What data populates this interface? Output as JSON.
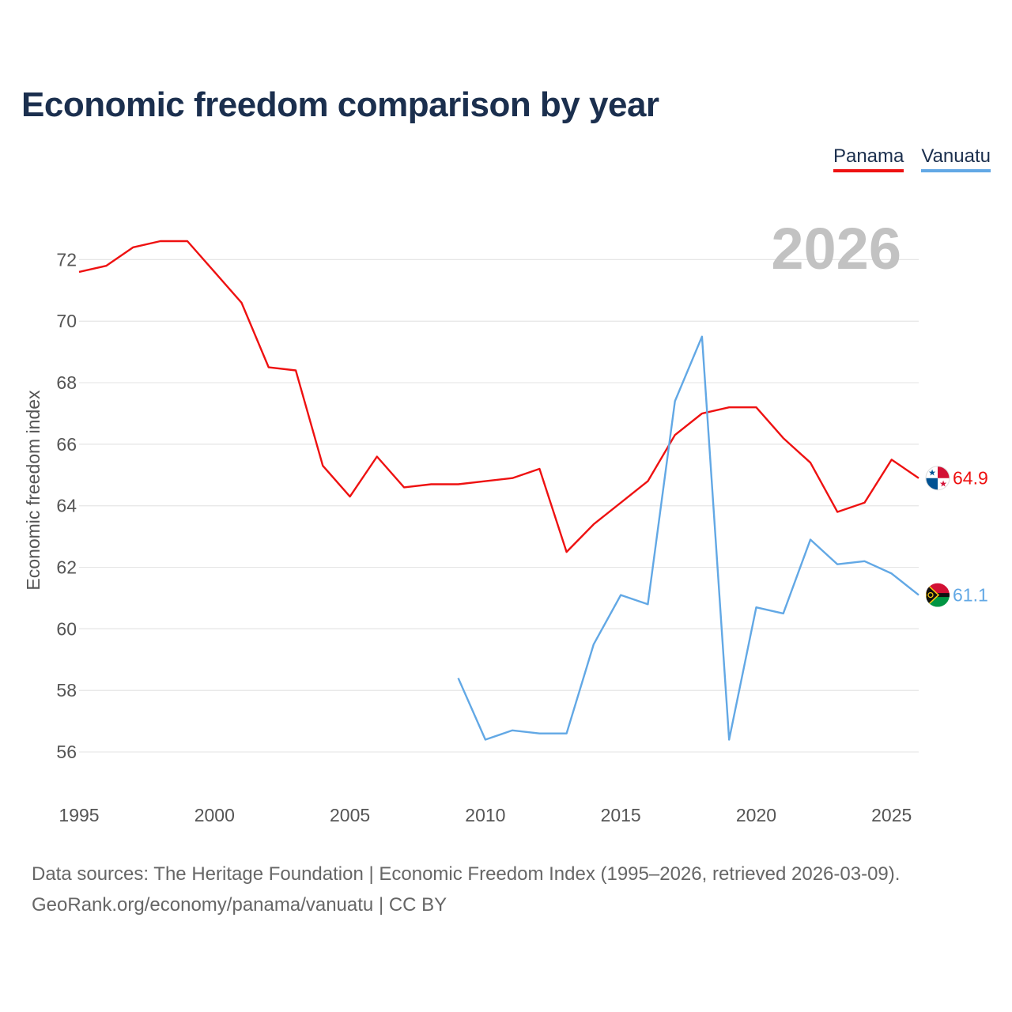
{
  "title": "Economic freedom comparison by year",
  "legend": [
    {
      "label": "Panama",
      "color": "#ee1111"
    },
    {
      "label": "Vanuatu",
      "color": "#62a8e5"
    }
  ],
  "chart_data": {
    "type": "line",
    "title": "Economic freedom comparison by year",
    "ylabel": "Economic freedom index",
    "xlabel": "",
    "year_badge": "2026",
    "xlim": [
      1995,
      2026
    ],
    "ylim": [
      55,
      73.5
    ],
    "xticks": [
      1995,
      2000,
      2005,
      2010,
      2015,
      2020,
      2025
    ],
    "yticks": [
      56,
      58,
      60,
      62,
      64,
      66,
      68,
      70,
      72
    ],
    "grid": true,
    "series": [
      {
        "name": "Panama",
        "color": "#ee1111",
        "end_label": "64.9",
        "points": [
          [
            1995,
            71.6
          ],
          [
            1996,
            71.8
          ],
          [
            1997,
            72.4
          ],
          [
            1998,
            72.6
          ],
          [
            1999,
            72.6
          ],
          [
            2000,
            71.6
          ],
          [
            2001,
            70.6
          ],
          [
            2002,
            68.5
          ],
          [
            2003,
            68.4
          ],
          [
            2004,
            65.3
          ],
          [
            2005,
            64.3
          ],
          [
            2006,
            65.6
          ],
          [
            2007,
            64.6
          ],
          [
            2008,
            64.7
          ],
          [
            2009,
            64.7
          ],
          [
            2010,
            64.8
          ],
          [
            2011,
            64.9
          ],
          [
            2012,
            65.2
          ],
          [
            2013,
            62.5
          ],
          [
            2014,
            63.4
          ],
          [
            2015,
            64.1
          ],
          [
            2016,
            64.8
          ],
          [
            2017,
            66.3
          ],
          [
            2018,
            67.0
          ],
          [
            2019,
            67.2
          ],
          [
            2020,
            67.2
          ],
          [
            2021,
            66.2
          ],
          [
            2022,
            65.4
          ],
          [
            2023,
            63.8
          ],
          [
            2024,
            64.1
          ],
          [
            2025,
            65.5
          ],
          [
            2026,
            64.9
          ]
        ]
      },
      {
        "name": "Vanuatu",
        "color": "#62a8e5",
        "end_label": "61.1",
        "points": [
          [
            2009,
            58.4
          ],
          [
            2010,
            56.4
          ],
          [
            2011,
            56.7
          ],
          [
            2012,
            56.6
          ],
          [
            2013,
            56.6
          ],
          [
            2014,
            59.5
          ],
          [
            2015,
            61.1
          ],
          [
            2016,
            60.8
          ],
          [
            2017,
            67.4
          ],
          [
            2018,
            69.5
          ],
          [
            2019,
            56.4
          ],
          [
            2020,
            60.7
          ],
          [
            2021,
            60.5
          ],
          [
            2022,
            62.9
          ],
          [
            2023,
            62.1
          ],
          [
            2024,
            62.2
          ],
          [
            2025,
            61.8
          ],
          [
            2026,
            61.1
          ]
        ]
      }
    ]
  },
  "source": {
    "line1": "Data sources: The Heritage Foundation | Economic Freedom Index (1995–2026, retrieved 2026-03-09).",
    "line2": "GeoRank.org/economy/panama/vanuatu | CC BY"
  }
}
